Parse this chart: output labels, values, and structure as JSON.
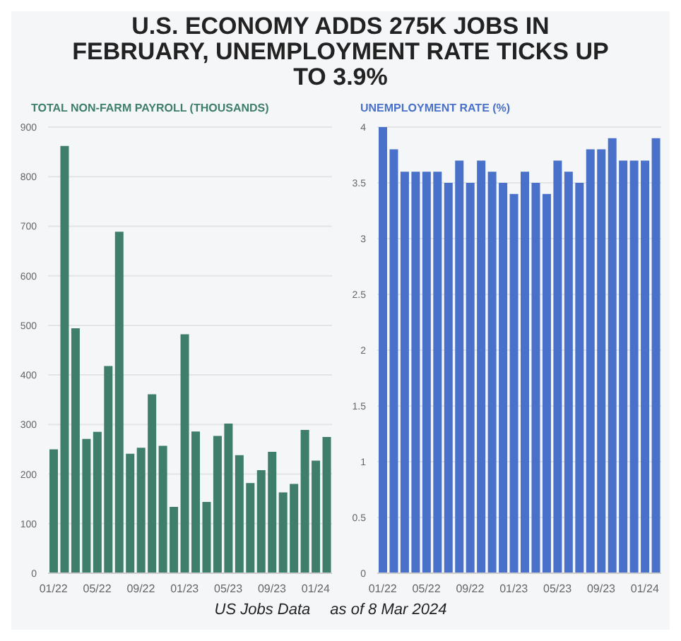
{
  "chart_data": [
    {
      "type": "bar",
      "title": "U.S. ECONOMY ADDS 275K JOBS IN FEBRUARY, UNEMPLOYMENT RATE TICKS UP TO 3.9%",
      "subtitle": "TOTAL NON-FARM PAYROLL (THOUSANDS)",
      "categories": [
        "01/22",
        null,
        null,
        null,
        "05/22",
        null,
        null,
        null,
        "09/22",
        null,
        null,
        null,
        "01/23",
        null,
        null,
        null,
        "05/23",
        null,
        null,
        null,
        "09/23",
        null,
        null,
        null,
        "01/24",
        null
      ],
      "values": [
        250,
        862,
        494,
        271,
        285,
        418,
        689,
        241,
        253,
        361,
        257,
        134,
        482,
        286,
        144,
        277,
        302,
        238,
        182,
        208,
        245,
        163,
        180,
        289,
        227,
        275
      ],
      "color": "#3f7e6a",
      "ylim": [
        0,
        900
      ],
      "yticks": [
        0,
        100,
        200,
        300,
        400,
        500,
        600,
        700,
        800,
        900
      ],
      "grid": "y",
      "annotations": [
        "US Jobs Data",
        "as of 8 Mar 2024"
      ]
    },
    {
      "type": "bar",
      "subtitle": "UNEMPLOYMENT RATE (%)",
      "categories": [
        "01/22",
        null,
        null,
        null,
        "05/22",
        null,
        null,
        null,
        "09/22",
        null,
        null,
        null,
        "01/23",
        null,
        null,
        null,
        "05/23",
        null,
        null,
        null,
        "09/23",
        null,
        null,
        null,
        "01/24",
        null
      ],
      "values": [
        4,
        3.8,
        3.6,
        3.6,
        3.6,
        3.6,
        3.5,
        3.7,
        3.5,
        3.7,
        3.6,
        3.5,
        3.4,
        3.6,
        3.5,
        3.4,
        3.7,
        3.6,
        3.5,
        3.8,
        3.8,
        3.9,
        3.7,
        3.7,
        3.7,
        3.9
      ],
      "color": "#4a71c9",
      "ylim": [
        0,
        4
      ],
      "yticks": [
        0,
        0.5,
        1,
        1.5,
        2,
        2.5,
        3,
        3.5,
        4
      ],
      "grid": "y"
    }
  ]
}
